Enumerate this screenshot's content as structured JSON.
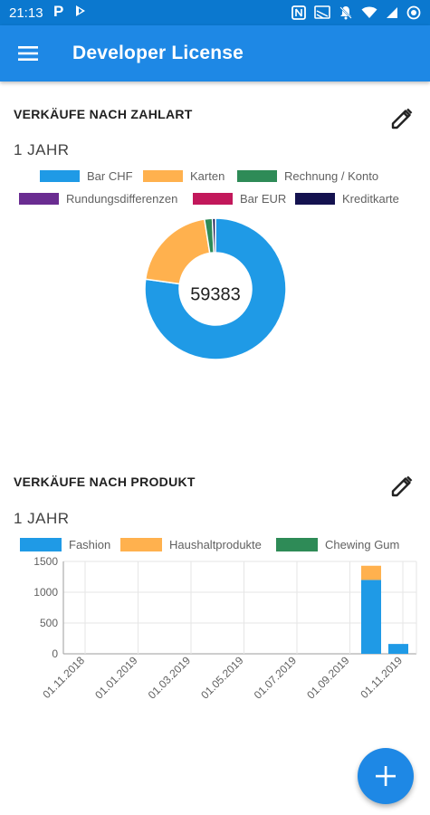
{
  "status_bar": {
    "time": "21:13",
    "notification_icons": [
      "parking-icon",
      "app-icon"
    ],
    "system_icons": [
      "nfc-icon",
      "cast-icon",
      "notifications-off-icon",
      "wifi-icon",
      "signal-icon",
      "battery-icon"
    ]
  },
  "app_bar": {
    "menu_icon": "menu-icon",
    "title": "Developer License"
  },
  "sales_by_payment": {
    "title": "VERKÄUFE NACH ZAHLART",
    "period": "1 JAHR",
    "edit_icon": "edit-pencil-icon",
    "total": "59383",
    "colors": {
      "bar_chf": "#1f9ae6",
      "karten": "#ffb14e",
      "rechnung": "#2e8b57",
      "rundung": "#6a2c91",
      "bar_eur": "#c2185b",
      "kreditkarte": "#14124f"
    },
    "legend": [
      "Bar CHF",
      "Karten",
      "Rechnung / Konto",
      "Rundungsdifferenzen",
      "Bar EUR",
      "Kreditkarte"
    ]
  },
  "sales_by_product": {
    "title": "VERKÄUFE NACH PRODUKT",
    "period": "1 JAHR",
    "edit_icon": "edit-pencil-icon",
    "legend": [
      "Fashion",
      "Haushaltprodukte",
      "Chewing Gum"
    ],
    "colors": {
      "fashion": "#1f9ae6",
      "haushalt": "#ffb14e",
      "chewing": "#2e8b57"
    }
  },
  "fab": {
    "icon": "plus-icon"
  },
  "chart_data": [
    {
      "type": "pie",
      "title": "VERKÄUFE NACH ZAHLART",
      "center_label": "59383",
      "donut": true,
      "categories": [
        "Bar CHF",
        "Karten",
        "Rechnung / Konto",
        "Rundungsdifferenzen",
        "Bar EUR",
        "Kreditkarte"
      ],
      "values": [
        0.772,
        0.203,
        0.018,
        0,
        0,
        0.007
      ],
      "value_unit": "share",
      "colors": [
        "#1f9ae6",
        "#ffb14e",
        "#2e8b57",
        "#6a2c91",
        "#c2185b",
        "#14124f"
      ],
      "legend": "top"
    },
    {
      "type": "bar",
      "stacked": true,
      "title": "VERKÄUFE NACH PRODUKT",
      "x": [
        "01.11.2018",
        "01.01.2019",
        "01.03.2019",
        "01.05.2019",
        "01.07.2019",
        "01.09.2019",
        "01.11.2019"
      ],
      "x_tick_labels": [
        "01.11.2018",
        "01.01.2019",
        "01.03.2019",
        "01.05.2019",
        "01.07.2019",
        "01.09.2019",
        "01.11.2019"
      ],
      "bars": [
        {
          "x": "10.2019",
          "fashion": 1200,
          "haushalt": 230,
          "chewing": 0
        },
        {
          "x": "11.2019",
          "fashion": 160,
          "haushalt": 0,
          "chewing": 0
        }
      ],
      "series": [
        {
          "name": "Fashion",
          "color": "#1f9ae6"
        },
        {
          "name": "Haushaltprodukte",
          "color": "#ffb14e"
        },
        {
          "name": "Chewing Gum",
          "color": "#2e8b57"
        }
      ],
      "y_ticks": [
        0,
        500,
        1000,
        1500
      ],
      "ylim": [
        0,
        1500
      ],
      "grid": true,
      "legend": "top"
    }
  ]
}
